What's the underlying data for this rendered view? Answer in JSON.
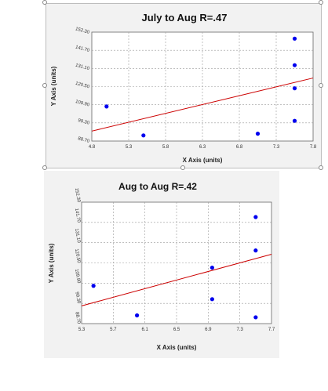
{
  "chart_data": [
    {
      "type": "scatter",
      "title": "July to Aug R=.47",
      "xlabel": "X Axis (units)",
      "ylabel": "Y Axis (units)",
      "x_ticks": [
        "4.8",
        "5.3",
        "5.8",
        "6.3",
        "6.8",
        "7.3",
        "7.8"
      ],
      "y_ticks": [
        "88.70",
        "99.30",
        "109.90",
        "120.50",
        "131.10",
        "141.70",
        "152.30"
      ],
      "xlim": [
        4.8,
        7.8
      ],
      "ylim": [
        88.7,
        152.3
      ],
      "grid": true,
      "points": [
        {
          "x": 5.0,
          "y": 108.9
        },
        {
          "x": 5.5,
          "y": 92.0
        },
        {
          "x": 7.05,
          "y": 93.0
        },
        {
          "x": 7.55,
          "y": 148.5
        },
        {
          "x": 7.55,
          "y": 133.0
        },
        {
          "x": 7.55,
          "y": 119.5
        },
        {
          "x": 7.55,
          "y": 100.5
        }
      ],
      "trendline": {
        "x": [
          4.8,
          7.8
        ],
        "y": [
          94.5,
          125.5
        ]
      },
      "point_color": "#0000ee",
      "trendline_color": "#cc0000"
    },
    {
      "type": "scatter",
      "title": "Aug to Aug R=.42",
      "xlabel": "X Axis (units)",
      "ylabel": "Y Axis (units)",
      "x_ticks": [
        "5.3",
        "5.7",
        "6.1",
        "6.5",
        "6.9",
        "7.3",
        "7.7"
      ],
      "y_ticks": [
        "88.70",
        "99.30",
        "109.90",
        "120.50",
        "131.10",
        "141.70",
        "152.30"
      ],
      "xlim": [
        5.3,
        7.7
      ],
      "ylim": [
        88.7,
        152.3
      ],
      "grid": true,
      "points": [
        {
          "x": 5.45,
          "y": 108.5
        },
        {
          "x": 6.0,
          "y": 93.0
        },
        {
          "x": 6.95,
          "y": 118.0
        },
        {
          "x": 6.95,
          "y": 101.5
        },
        {
          "x": 7.5,
          "y": 144.5
        },
        {
          "x": 7.5,
          "y": 127.0
        },
        {
          "x": 7.5,
          "y": 92.0
        }
      ],
      "trendline": {
        "x": [
          5.3,
          7.7
        ],
        "y": [
          98.0,
          125.0
        ]
      },
      "point_color": "#0000ee",
      "trendline_color": "#cc0000"
    }
  ]
}
